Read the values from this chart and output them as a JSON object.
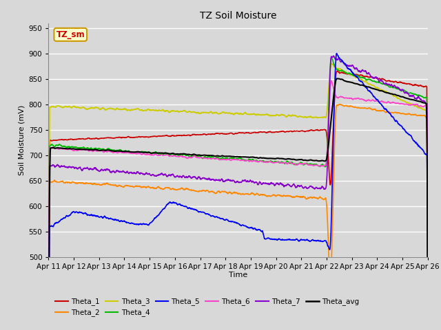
{
  "title": "TZ Soil Moisture",
  "xlabel": "Time",
  "ylabel": "Soil Moisture (mV)",
  "ylim": [
    500,
    960
  ],
  "yticks": [
    500,
    550,
    600,
    650,
    700,
    750,
    800,
    850,
    900,
    950
  ],
  "x_tick_labels": [
    "Apr 11",
    "Apr 12",
    "Apr 13",
    "Apr 14",
    "Apr 15",
    "Apr 16",
    "Apr 17",
    "Apr 18",
    "Apr 19",
    "Apr 20",
    "Apr 21",
    "Apr 22",
    "Apr 23",
    "Apr 24",
    "Apr 25",
    "Apr 26"
  ],
  "bg_color": "#d8d8d8",
  "plot_bg": "#d8d8d8",
  "grid_color": "#ffffff",
  "label_box_color": "#ffffcc",
  "label_box_text": "TZ_sm",
  "label_box_text_color": "#cc0000",
  "series": {
    "Theta_1": {
      "color": "#cc0000",
      "lw": 1.2
    },
    "Theta_2": {
      "color": "#ff8800",
      "lw": 1.2
    },
    "Theta_3": {
      "color": "#cccc00",
      "lw": 1.2
    },
    "Theta_4": {
      "color": "#00bb00",
      "lw": 1.2
    },
    "Theta_5": {
      "color": "#0000ff",
      "lw": 1.2
    },
    "Theta_6": {
      "color": "#ff44cc",
      "lw": 1.2
    },
    "Theta_7": {
      "color": "#8800cc",
      "lw": 1.2
    },
    "Theta_avg": {
      "color": "#000000",
      "lw": 1.5
    }
  },
  "legend_rows": [
    [
      "Theta_1",
      "Theta_2",
      "Theta_3",
      "Theta_4",
      "Theta_5",
      "Theta_6"
    ],
    [
      "Theta_7",
      "Theta_avg"
    ]
  ]
}
